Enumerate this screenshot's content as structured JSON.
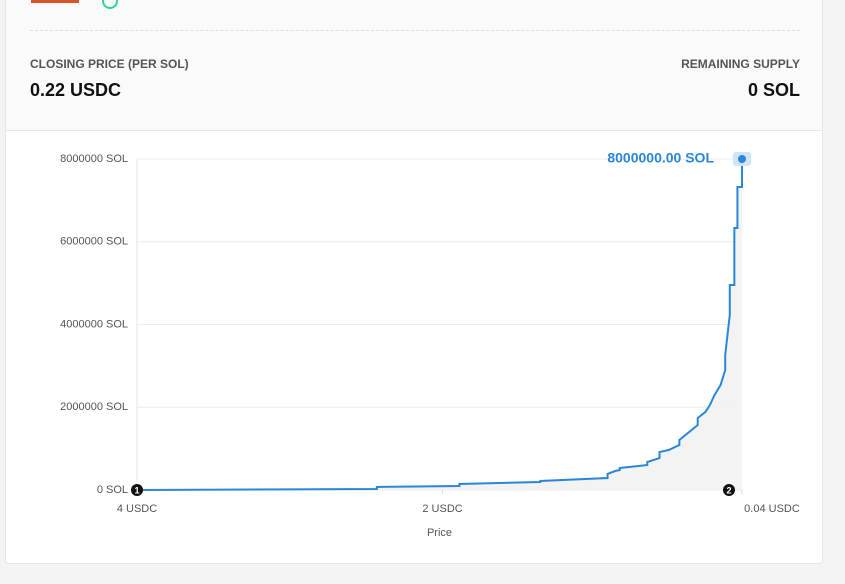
{
  "header": {
    "closing_price_label": "CLOSING PRICE (PER SOL)",
    "closing_price_value": "0.22 USDC",
    "remaining_supply_label": "REMAINING SUPPLY",
    "remaining_supply_value": "0 SOL"
  },
  "chart_data": {
    "type": "line",
    "x_label": "Price",
    "annotation": "8000000.00 SOL",
    "point_markers": [
      "1",
      "2"
    ],
    "xlim": [
      4,
      0.04
    ],
    "xticks": [
      {
        "value": 4,
        "label": "4 USDC"
      },
      {
        "value": 2,
        "label": "2 USDC"
      },
      {
        "value": 0.04,
        "label": "0.04 USDC"
      }
    ],
    "ylim": [
      0,
      8000000
    ],
    "yticks": [
      {
        "value": 0,
        "label": "0 SOL"
      },
      {
        "value": 2000000,
        "label": "2000000 SOL"
      },
      {
        "value": 4000000,
        "label": "4000000 SOL"
      },
      {
        "value": 6000000,
        "label": "6000000 SOL"
      },
      {
        "value": 8000000,
        "label": "8000000 SOL"
      }
    ],
    "grid": true,
    "series": [
      {
        "color": "#2b86d9",
        "x": [
          4,
          2.43,
          2.43,
          1.89,
          1.89,
          1.36,
          1.36,
          0.92,
          0.92,
          0.87,
          0.84,
          0.84,
          0.66,
          0.66,
          0.58,
          0.58,
          0.52,
          0.45,
          0.45,
          0.33,
          0.33,
          0.28,
          0.25,
          0.22,
          0.18,
          0.15,
          0.15,
          0.12,
          0.12,
          0.09,
          0.09,
          0.07,
          0.07,
          0.04,
          0.04
        ],
        "values": [
          0,
          24000,
          73000,
          97000,
          145000,
          193000,
          218000,
          290000,
          387000,
          459000,
          483000,
          532000,
          604000,
          677000,
          773000,
          918000,
          967000,
          1088000,
          1208000,
          1571000,
          1740000,
          1885000,
          2054000,
          2296000,
          2538000,
          2900000,
          3263000,
          4230000,
          4955000,
          4955000,
          6332000,
          6332000,
          7323000,
          7323000,
          8000000
        ]
      }
    ]
  }
}
